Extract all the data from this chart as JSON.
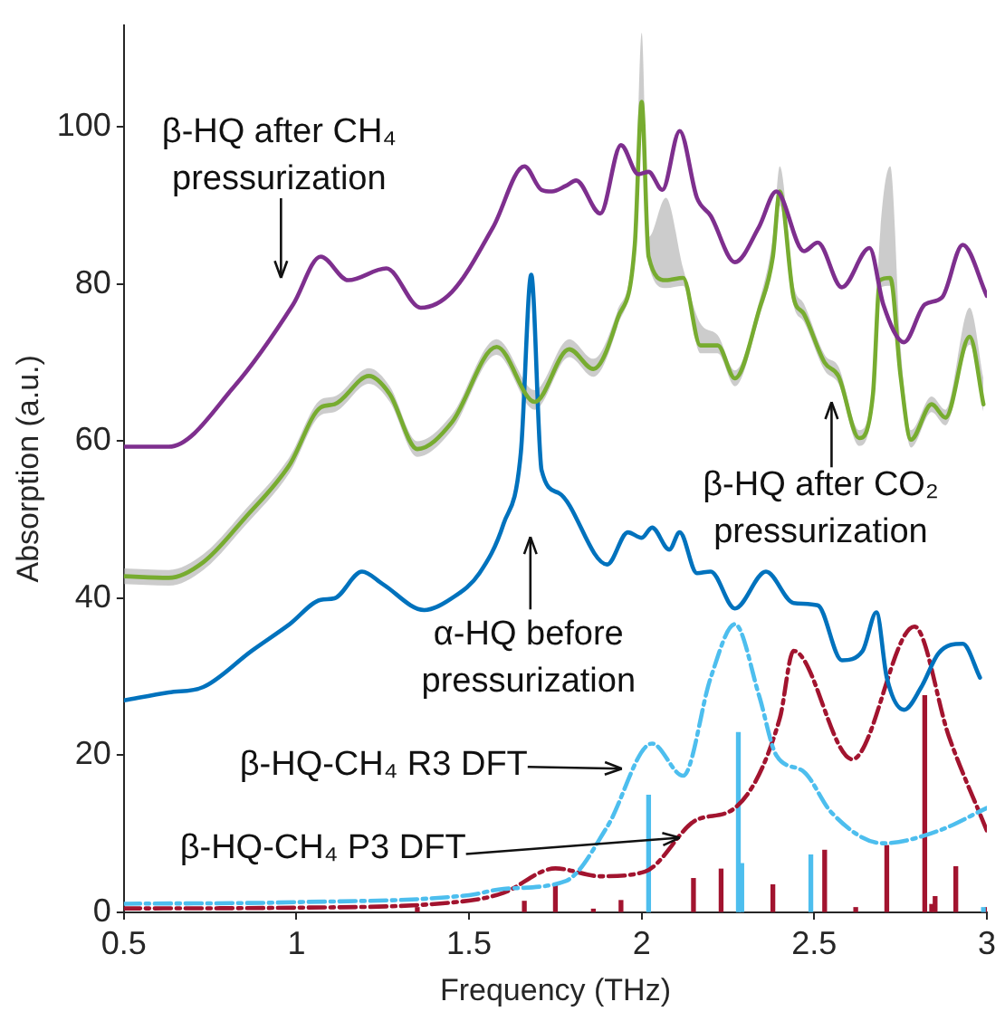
{
  "chart_data": {
    "type": "line",
    "xlabel": "Frequency (THz)",
    "ylabel": "Absorption (a.u.)",
    "xlim": [
      0.5,
      3
    ],
    "xticks": [
      0.5,
      1,
      1.5,
      2,
      2.5,
      3
    ],
    "ylim": [
      0,
      113
    ],
    "yticks": [
      0,
      20,
      40,
      60,
      80,
      100
    ],
    "series": [
      {
        "color": "#7e2f8e",
        "x": [
          0.5,
          0.63,
          0.82,
          0.99,
          1.07,
          1.15,
          1.26,
          1.36,
          1.45,
          1.57,
          1.66,
          1.71,
          1.74,
          1.78,
          1.81,
          1.88,
          1.94,
          1.99,
          2.02,
          2.06,
          2.11,
          2.16,
          2.2,
          2.27,
          2.34,
          2.39,
          2.47,
          2.51,
          2.58,
          2.66,
          2.7,
          2.76,
          2.82,
          2.87,
          2.93,
          3.0
        ],
        "values": [
          59.3,
          59.3,
          67,
          77.4,
          83.5,
          80.5,
          82,
          77,
          79,
          87.3,
          95,
          92,
          91.8,
          92.5,
          93.2,
          89,
          97.7,
          94,
          94.3,
          92,
          99.5,
          91,
          88.7,
          82.8,
          87.3,
          91.8,
          84.2,
          85.3,
          79.6,
          84.6,
          77.4,
          72.6,
          77.4,
          78.3,
          85,
          78.5
        ]
      },
      {
        "color": "#77ac30",
        "x": [
          0.5,
          0.63,
          0.73,
          0.85,
          0.98,
          1.07,
          1.11,
          1.21,
          1.27,
          1.35,
          1.45,
          1.58,
          1.69,
          1.79,
          1.86,
          1.93,
          1.98,
          2.0,
          2.02,
          2.07,
          2.12,
          2.17,
          2.22,
          2.27,
          2.34,
          2.38,
          2.4,
          2.44,
          2.47,
          2.53,
          2.57,
          2.63,
          2.67,
          2.69,
          2.72,
          2.75,
          2.78,
          2.84,
          2.88,
          2.95,
          2.99
        ],
        "values": [
          42.8,
          42.6,
          44.6,
          50.2,
          57,
          64.3,
          64.7,
          68.3,
          66,
          59,
          62.4,
          72,
          65,
          71.7,
          69.2,
          75.6,
          85,
          103.2,
          83.5,
          80.5,
          80.8,
          72.2,
          72.2,
          68,
          76.7,
          83.5,
          91.8,
          78.3,
          76.2,
          70,
          68.3,
          60.4,
          66,
          80.5,
          80.8,
          68.3,
          60.2,
          64.7,
          63,
          73.3,
          64.7
        ],
        "upper": [
          43.8,
          43.6,
          45.6,
          51.2,
          58,
          65.3,
          65.7,
          69.3,
          67,
          60,
          63.4,
          73,
          66.5,
          73,
          70.5,
          76.6,
          87,
          112,
          86,
          91,
          82,
          75,
          73.5,
          69,
          77.7,
          86,
          95,
          80,
          77.5,
          71,
          69.5,
          61.4,
          67.5,
          86,
          95,
          72,
          61.4,
          65.7,
          64,
          77,
          68
        ],
        "lower": [
          41.8,
          41.6,
          43.6,
          49.2,
          56,
          63.3,
          63.7,
          67.3,
          65,
          58,
          61.4,
          71,
          64,
          70.7,
          68.2,
          74.6,
          84,
          100,
          82.5,
          79.5,
          79.8,
          71.2,
          71.2,
          67,
          75.7,
          82.5,
          90,
          77.3,
          75.2,
          69,
          67.3,
          59.4,
          65,
          79.5,
          79.8,
          67.3,
          59.2,
          63.7,
          62,
          72.3,
          63.7
        ]
      },
      {
        "color": "#0072bd",
        "x": [
          0.5,
          0.63,
          0.73,
          0.87,
          0.98,
          1.07,
          1.11,
          1.19,
          1.25,
          1.37,
          1.45,
          1.53,
          1.6,
          1.65,
          1.68,
          1.71,
          1.76,
          1.9,
          1.96,
          2.0,
          2.03,
          2.08,
          2.11,
          2.16,
          2.2,
          2.27,
          2.36,
          2.44,
          2.51,
          2.58,
          2.64,
          2.68,
          2.71,
          2.76,
          2.81,
          2.86,
          2.93,
          2.98
        ],
        "values": [
          27,
          28,
          28.7,
          33.3,
          36.7,
          39.8,
          40,
          43.4,
          41.8,
          38.5,
          40,
          43.2,
          49.5,
          58.6,
          81.2,
          56.3,
          53.4,
          44.3,
          48.4,
          47.7,
          49,
          46.2,
          48.4,
          43.2,
          43.4,
          38.7,
          43.4,
          39.4,
          39.1,
          32.1,
          33.3,
          38.2,
          29.9,
          25.8,
          28.7,
          33,
          34.2,
          29.9
        ]
      },
      {
        "color": "#4dbeee",
        "line_style": "dashed",
        "x": [
          0.5,
          1.0,
          1.5,
          1.6,
          1.78,
          1.9,
          2.03,
          2.12,
          2.2,
          2.27,
          2.34,
          2.39,
          2.47,
          2.55,
          2.7,
          2.86,
          3.0
        ],
        "values": [
          1.1,
          1.3,
          2.2,
          3,
          4,
          10.9,
          21.5,
          17.4,
          29.9,
          36.7,
          27.6,
          20,
          17.9,
          12.7,
          8.8,
          10.4,
          13.3
        ]
      },
      {
        "color": "#a2142f",
        "line_style": "dashed",
        "x": [
          0.5,
          1.0,
          1.5,
          1.6,
          1.75,
          1.88,
          2.01,
          2.16,
          2.27,
          2.4,
          2.44,
          2.61,
          2.79,
          2.89,
          3.0
        ],
        "values": [
          0.5,
          0.6,
          1.5,
          2.5,
          5.6,
          4.6,
          5.2,
          11.8,
          13.3,
          24.7,
          33.3,
          19.5,
          36.4,
          22.4,
          10.4
        ]
      },
      {
        "type": "bar",
        "color": "#4dbeee",
        "x": [
          2.02,
          2.28,
          2.29,
          2.49,
          2.99
        ],
        "values": [
          14.9,
          22.9,
          6.2,
          7.3,
          0.6
        ]
      },
      {
        "type": "bar",
        "color": "#a2142f",
        "x": [
          1.35,
          1.66,
          1.75,
          1.86,
          1.94,
          2.15,
          2.23,
          2.38,
          2.53,
          2.62,
          2.71,
          2.82,
          2.84,
          2.85,
          2.91,
          3.0
        ],
        "values": [
          0.6,
          1.4,
          3.5,
          0.4,
          1.5,
          4.3,
          5.5,
          3.5,
          7.9,
          0.6,
          8.5,
          27.6,
          1,
          2,
          5.8,
          0.6
        ]
      }
    ],
    "annotations": [
      "β-HQ after CH₄ pressurization",
      "β-HQ after CO₂ pressurization",
      "α-HQ before pressurization",
      "β-HQ-CH₄ R3 DFT",
      {
        "text": "β-HQ-CH₄ P3 DFT",
        "x": 2.11,
        "y": 9.5
      }
    ]
  }
}
